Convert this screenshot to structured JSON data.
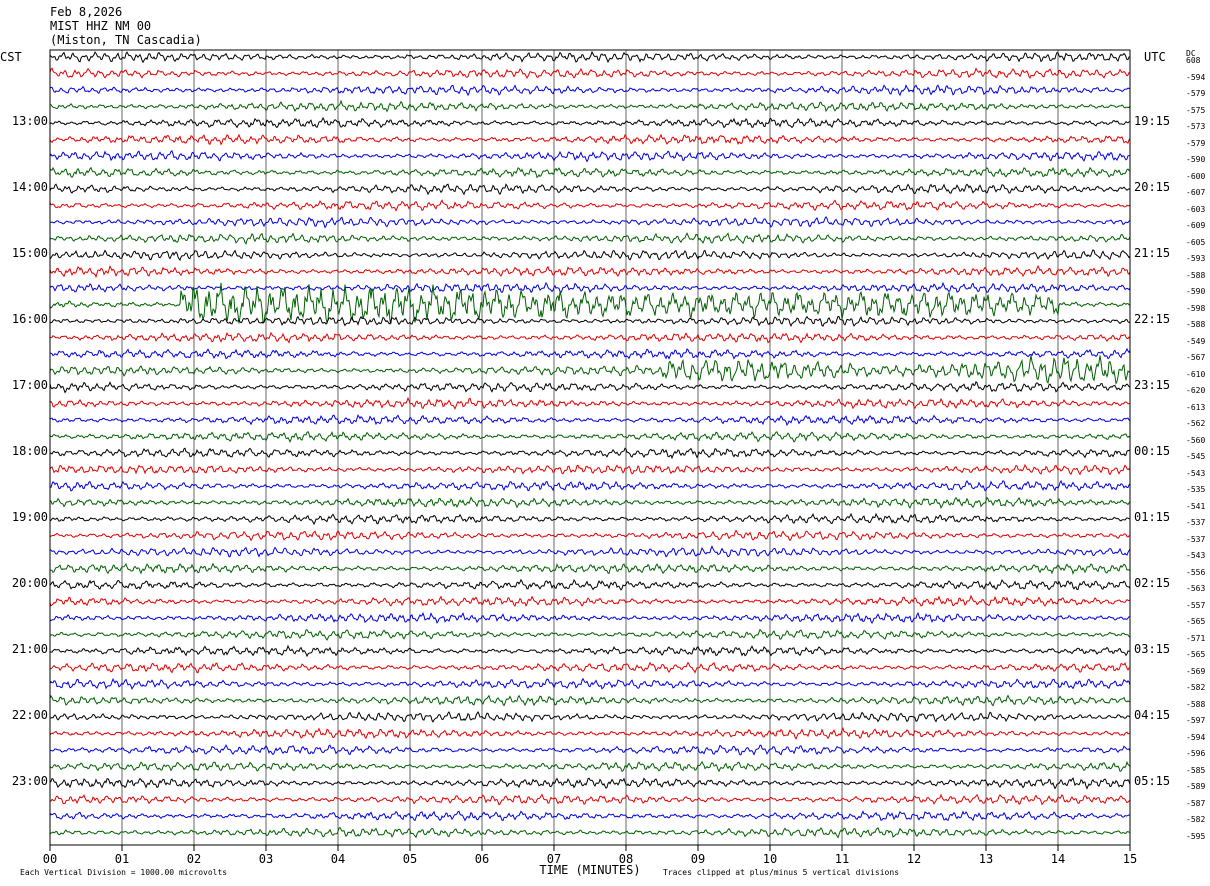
{
  "header": {
    "date": "Feb 8,2026",
    "station": "MIST HHZ NM 00",
    "location": "(Miston, TN Cascadia)"
  },
  "left_tz": "CST",
  "right_tz": "UTC",
  "dc_label": "DC",
  "chart_data": {
    "type": "line",
    "title": "",
    "xlabel": "TIME (MINUTES)",
    "xlim": [
      0,
      15
    ],
    "x_ticks": [
      "00",
      "01",
      "02",
      "03",
      "04",
      "05",
      "06",
      "07",
      "08",
      "09",
      "10",
      "11",
      "12",
      "13",
      "14",
      "15"
    ],
    "trace_colors": [
      "#000000",
      "#e00000",
      "#0000e0",
      "#006000"
    ],
    "left_time_labels": [
      "13:00",
      "14:00",
      "15:00",
      "16:00",
      "17:00",
      "18:00",
      "19:00",
      "20:00",
      "21:00",
      "22:00",
      "23:00"
    ],
    "right_time_labels": [
      "19:15",
      "20:15",
      "21:15",
      "22:15",
      "23:15",
      "00:15",
      "01:15",
      "02:15",
      "03:15",
      "04:15",
      "05:15"
    ],
    "dc_offsets": [
      "608",
      "-594",
      "-579",
      "-575",
      "-573",
      "-579",
      "-590",
      "-600",
      "-607",
      "-603",
      "-609",
      "-605",
      "-593",
      "-588",
      "-590",
      "-598",
      "-588",
      "-549",
      "-567",
      "-610",
      "-620",
      "-613",
      "-562",
      "-560",
      "-545",
      "-543",
      "-535",
      "-541",
      "-537",
      "-537",
      "-543",
      "-556",
      "-563",
      "-557",
      "-565",
      "-571",
      "-565",
      "-569",
      "-582",
      "-588",
      "-597",
      "-594",
      "-596",
      "-585",
      "-589",
      "-587",
      "-582",
      "-595"
    ],
    "events": [
      {
        "row": 15,
        "start_min": 1.8,
        "end_min": 14.0,
        "amplitude": "large"
      },
      {
        "row": 19,
        "start_min": 8.5,
        "end_min": 15.0,
        "amplitude": "medium"
      }
    ]
  },
  "footer": {
    "scale_note": "Each Vertical Division = 1000.00 microvolts",
    "clip_note": "Traces clipped at plus/minus 5 vertical divisions"
  }
}
